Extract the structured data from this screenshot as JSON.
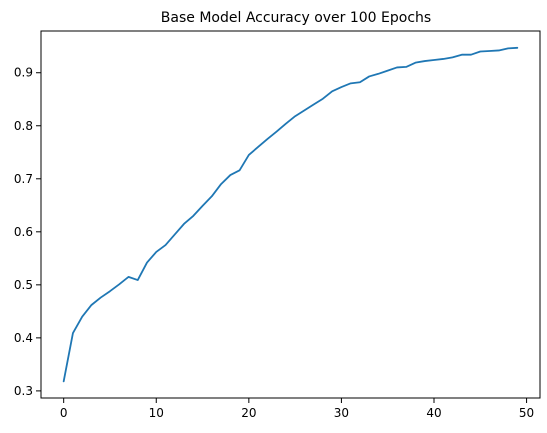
{
  "chart_data": {
    "type": "line",
    "title": "Base Model Accuracy over 100 Epochs",
    "xlabel": "",
    "ylabel": "",
    "xlim": [
      -2.45,
      51.45
    ],
    "ylim": [
      0.2866,
      0.9787
    ],
    "xticks": [
      0,
      10,
      20,
      30,
      40,
      50
    ],
    "yticks": [
      0.3,
      0.4,
      0.5,
      0.6,
      0.7,
      0.8,
      0.9
    ],
    "grid": false,
    "legend": "none",
    "line_color": "#1f77b4",
    "series": [
      {
        "x": [
          0,
          1,
          2,
          3,
          4,
          5,
          6,
          7,
          8,
          9,
          10,
          11,
          12,
          13,
          14,
          15,
          16,
          17,
          18,
          19,
          20,
          21,
          22,
          23,
          24,
          25,
          26,
          27,
          28,
          29,
          30,
          31,
          32,
          33,
          34,
          35,
          36,
          37,
          38,
          39,
          40,
          41,
          42,
          43,
          44,
          45,
          46,
          47,
          48,
          49
        ],
        "values": [
          0.318,
          0.409,
          0.44,
          0.462,
          0.476,
          0.488,
          0.501,
          0.515,
          0.509,
          0.542,
          0.562,
          0.575,
          0.595,
          0.615,
          0.63,
          0.649,
          0.667,
          0.69,
          0.707,
          0.716,
          0.745,
          0.76,
          0.775,
          0.789,
          0.804,
          0.818,
          0.829,
          0.84,
          0.851,
          0.865,
          0.873,
          0.88,
          0.882,
          0.893,
          0.898,
          0.904,
          0.91,
          0.911,
          0.919,
          0.922,
          0.924,
          0.926,
          0.929,
          0.934,
          0.934,
          0.94,
          0.941,
          0.942,
          0.946,
          0.947
        ]
      }
    ]
  }
}
